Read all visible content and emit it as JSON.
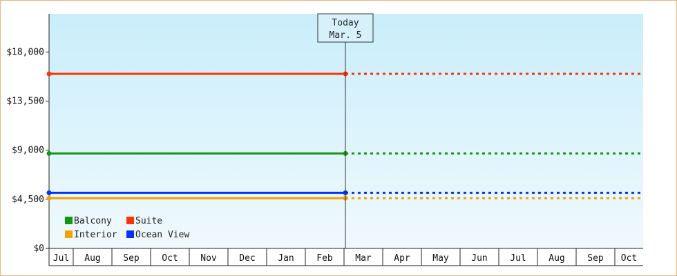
{
  "chart_data": {
    "type": "line",
    "title": "",
    "xlabel": "",
    "ylabel": "",
    "ylim": [
      0,
      21500
    ],
    "yticks": [
      0,
      4500,
      9000,
      13500,
      18000
    ],
    "ytick_labels": [
      "$0",
      "$4,500",
      "$9,000",
      "$13,500",
      "$18,000"
    ],
    "months": [
      "Jul",
      "Aug",
      "Sep",
      "Oct",
      "Nov",
      "Dec",
      "Jan",
      "Feb",
      "Mar",
      "Apr",
      "May",
      "Jun",
      "Jul",
      "Aug",
      "Sep",
      "Oct"
    ],
    "today": {
      "line1": "Today",
      "line2": "Mar. 5",
      "month_position": 7.68
    },
    "series": [
      {
        "name": "Suite",
        "color": "#ff3300",
        "value": 16000,
        "start": 0,
        "today": 7.68,
        "end": 15.0
      },
      {
        "name": "Balcony",
        "color": "#119911",
        "value": 8700,
        "start": 0,
        "today": 7.68,
        "end": 15.0
      },
      {
        "name": "Ocean View",
        "color": "#0033ff",
        "value": 5100,
        "start": 0,
        "today": 7.68,
        "end": 15.0
      },
      {
        "name": "Interior",
        "color": "#f5a000",
        "value": 4600,
        "start": 0,
        "today": 7.68,
        "end": 15.0
      }
    ],
    "legend": [
      {
        "label": "Balcony",
        "color": "#119911"
      },
      {
        "label": "Suite",
        "color": "#ff3300"
      },
      {
        "label": "Interior",
        "color": "#f5a000"
      },
      {
        "label": "Ocean View",
        "color": "#0033ff"
      }
    ],
    "legend_position": "bottom-left",
    "grid": false
  }
}
